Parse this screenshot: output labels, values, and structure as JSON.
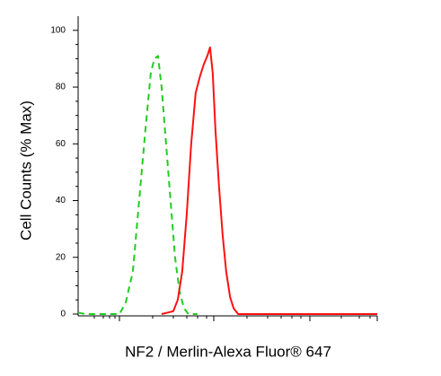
{
  "chart_data": {
    "type": "line",
    "xlabel": "NF2 / Merlin-Alexa Fluor® 647",
    "ylabel": "Cell Counts (% Max)",
    "xlim": [
      0,
      100
    ],
    "ylim": [
      0,
      105
    ],
    "yticks": [
      0,
      20,
      40,
      60,
      80,
      100
    ],
    "series": [
      {
        "color": "#22cc22",
        "dash": true,
        "x": [
          0,
          2.4,
          13.8,
          15.9,
          18.3,
          20.4,
          22.5,
          24.3,
          25.5,
          26.7,
          27.9,
          29.4,
          30.9,
          32.4,
          33.9,
          35.4,
          36.9,
          39.9
        ],
        "values": [
          0.5,
          0,
          0,
          4,
          15,
          40,
          65,
          85,
          90,
          91,
          80,
          60,
          40,
          20,
          8,
          2,
          0,
          0
        ]
      },
      {
        "color": "#ff1111",
        "dash": false,
        "x": [
          27.9,
          31.8,
          33.3,
          34.8,
          36.3,
          37.8,
          39.3,
          40.8,
          42.0,
          43.2,
          44.1,
          45.0,
          45.9,
          47.1,
          48.3,
          49.5,
          50.8,
          52.0,
          53.5,
          64.0,
          100
        ],
        "values": [
          0,
          1,
          5,
          15,
          35,
          60,
          78,
          84,
          88,
          91,
          94,
          85,
          65,
          45,
          28,
          15,
          6,
          2,
          0,
          0,
          0
        ]
      }
    ]
  }
}
